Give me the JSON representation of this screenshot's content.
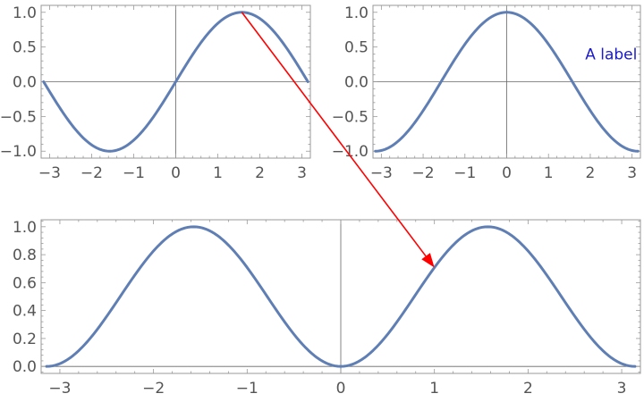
{
  "colors": {
    "curve": "#5f7fb4",
    "arrow": "#ff0000",
    "annotation": "#1a1acc",
    "tick_text": "#555555"
  },
  "chart_data": [
    {
      "type": "line",
      "function": "sin(x)",
      "series": [
        {
          "x": [
            -3.14159,
            -1.5708,
            0,
            1.5708,
            3.14159
          ],
          "y": [
            0,
            -1,
            0,
            1,
            0
          ]
        }
      ],
      "xlim": [
        -3.2,
        3.2
      ],
      "ylim": [
        -1.1,
        1.1
      ],
      "xticks": [
        -3,
        -2,
        -1,
        0,
        1,
        2,
        3
      ],
      "yticks": [
        1.0,
        0.5,
        0.0,
        -0.5,
        -1.0
      ],
      "xtick_labels": [
        "−3",
        "−2",
        "−1",
        "0",
        "1",
        "2",
        "3"
      ],
      "ytick_labels": [
        "1.0",
        "0.5",
        "0.0",
        "−0.5",
        "−1.0"
      ],
      "grid": false
    },
    {
      "type": "line",
      "function": "cos(x)",
      "series": [
        {
          "x": [
            -3.14159,
            -1.5708,
            0,
            1.5708,
            3.14159
          ],
          "y": [
            -1,
            0,
            1,
            0,
            -1
          ]
        }
      ],
      "xlim": [
        -3.2,
        3.2
      ],
      "ylim": [
        -1.1,
        1.1
      ],
      "xticks": [
        -3,
        -2,
        -1,
        0,
        1,
        2,
        3
      ],
      "yticks": [
        1.0,
        0.5,
        0.0,
        -0.5,
        -1.0
      ],
      "xtick_labels": [
        "−3",
        "−2",
        "−1",
        "0",
        "1",
        "2",
        "3"
      ],
      "ytick_labels": [
        "1.0",
        "0.5",
        "0.0",
        "−0.5",
        "−1.0"
      ],
      "annotations": [
        {
          "text": "A label",
          "x": 2.5,
          "y": 0.4
        }
      ],
      "grid": false
    },
    {
      "type": "line",
      "function": "sin(x)^2",
      "series": [
        {
          "x": [
            -3.14159,
            -1.5708,
            0,
            1.5708,
            3.14159
          ],
          "y": [
            0,
            1,
            0,
            1,
            0
          ]
        }
      ],
      "xlim": [
        -3.2,
        3.2
      ],
      "ylim": [
        -0.05,
        1.05
      ],
      "xticks": [
        -3,
        -2,
        -1,
        0,
        1,
        2,
        3
      ],
      "yticks": [
        1.0,
        0.8,
        0.6,
        0.4,
        0.2,
        0.0
      ],
      "xtick_labels": [
        "−3",
        "−2",
        "−1",
        "0",
        "1",
        "2",
        "3"
      ],
      "ytick_labels": [
        "1.0",
        "0.8",
        "0.6",
        "0.4",
        "0.2",
        "0.0"
      ],
      "grid": false
    }
  ],
  "arrow": {
    "from": {
      "plot": 0,
      "x": 1.5708,
      "y": 1.0
    },
    "to": {
      "plot": 2,
      "x": 1.0,
      "y": 0.708
    }
  }
}
